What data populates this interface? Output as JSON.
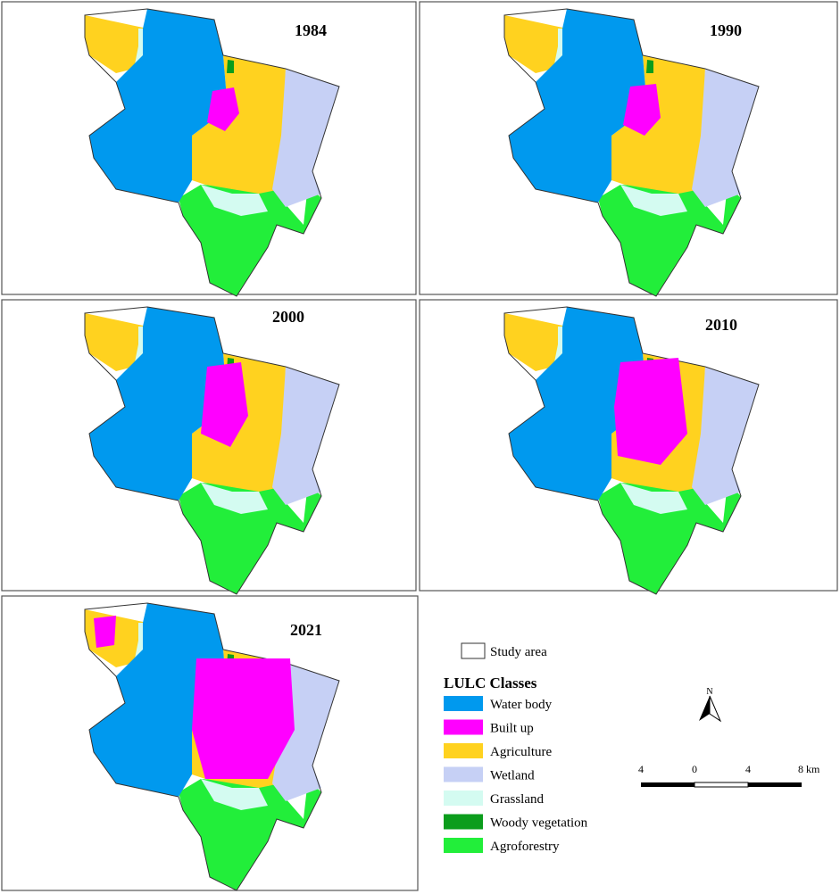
{
  "panels": [
    {
      "year": "1984"
    },
    {
      "year": "1990"
    },
    {
      "year": "2000"
    },
    {
      "year": "2010"
    },
    {
      "year": "2021"
    }
  ],
  "legend": {
    "study_area": "Study area",
    "title": "LULC Classes",
    "classes": [
      {
        "label": "Water body",
        "color": "#0099ee"
      },
      {
        "label": "Built up",
        "color": "#ff00ff"
      },
      {
        "label": "Agriculture",
        "color": "#ffd21f"
      },
      {
        "label": "Wetland",
        "color": "#c6d0f5"
      },
      {
        "label": "Grassland",
        "color": "#d4fbf1"
      },
      {
        "label": "Woody vegetation",
        "color": "#0b9d1c"
      },
      {
        "label": "Agroforestry",
        "color": "#22ee3a"
      }
    ]
  },
  "north": "N",
  "scale": {
    "labels": [
      "4",
      "0",
      "4",
      "8 km"
    ]
  }
}
